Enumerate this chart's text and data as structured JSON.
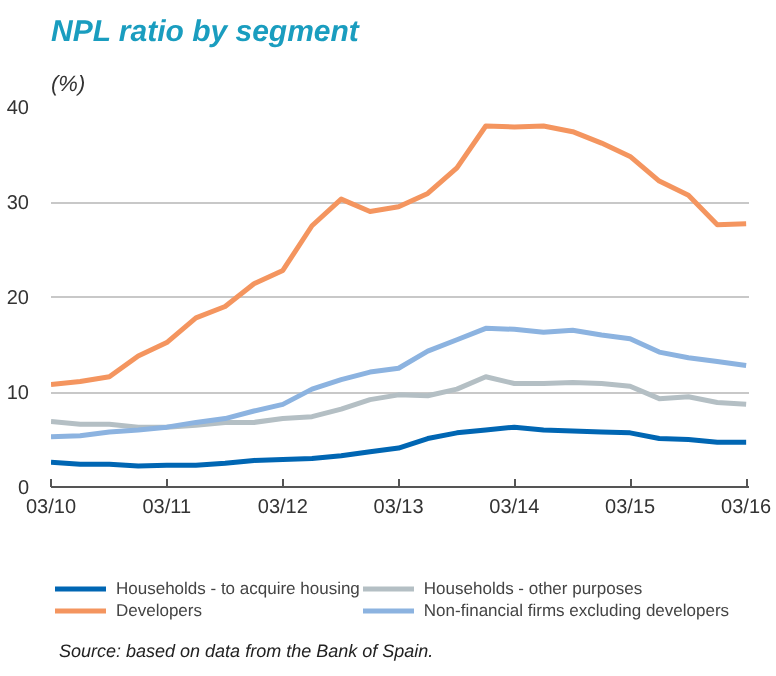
{
  "chart_data": {
    "type": "line",
    "title": "NPL ratio by segment",
    "ylabel": "(%)",
    "x": [
      "2010-03",
      "2010-06",
      "2010-09",
      "2010-12",
      "2011-03",
      "2011-06",
      "2011-09",
      "2011-12",
      "2012-03",
      "2012-06",
      "2012-09",
      "2012-12",
      "2013-03",
      "2013-06",
      "2013-09",
      "2013-12",
      "2014-03",
      "2014-06",
      "2014-09",
      "2014-12",
      "2015-03",
      "2015-06",
      "2015-09",
      "2015-12",
      "2016-03"
    ],
    "xlim": [
      "2010-03",
      "2016-03-10"
    ],
    "xticks": [
      {
        "value": "2010-03",
        "label": "03/10"
      },
      {
        "value": "2011-03",
        "label": "03/11"
      },
      {
        "value": "2012-03",
        "label": "03/12"
      },
      {
        "value": "2013-03",
        "label": "03/13"
      },
      {
        "value": "2014-03",
        "label": "03/14"
      },
      {
        "value": "2015-03",
        "label": "03/15"
      },
      {
        "value": "2016-03",
        "label": "03/16"
      }
    ],
    "ylim": [
      0,
      40
    ],
    "yticks": [
      0,
      10,
      20,
      30,
      40
    ],
    "grid": "y",
    "legend": "bottom",
    "series": [
      {
        "name": "Households - to acquire housing",
        "color": "#0066b3",
        "values": [
          2.6,
          2.4,
          2.4,
          2.2,
          2.3,
          2.3,
          2.5,
          2.8,
          2.9,
          3.0,
          3.3,
          3.7,
          4.1,
          5.1,
          5.7,
          6.0,
          6.3,
          6.0,
          5.9,
          5.8,
          5.7,
          5.1,
          5.0,
          4.7,
          4.7
        ]
      },
      {
        "name": "Developers",
        "color": "#f4955f",
        "values": [
          10.8,
          11.1,
          11.6,
          13.8,
          15.2,
          17.8,
          19.0,
          21.4,
          22.8,
          27.5,
          30.3,
          29.0,
          29.5,
          30.9,
          33.6,
          38.0,
          37.9,
          38.0,
          37.4,
          36.2,
          34.8,
          32.2,
          30.7,
          27.6,
          27.7
        ]
      },
      {
        "name": "Households - other purposes",
        "color": "#b4bfc4",
        "values": [
          6.9,
          6.6,
          6.6,
          6.3,
          6.3,
          6.5,
          6.8,
          6.8,
          7.2,
          7.4,
          8.2,
          9.2,
          9.7,
          9.6,
          10.3,
          11.6,
          10.9,
          10.9,
          11.0,
          10.9,
          10.6,
          9.3,
          9.5,
          8.9,
          8.7
        ]
      },
      {
        "name": "Non-financial firms excluding developers",
        "color": "#8cb3e0",
        "values": [
          5.3,
          5.4,
          5.8,
          6.0,
          6.3,
          6.8,
          7.2,
          8.0,
          8.7,
          10.3,
          11.3,
          12.1,
          12.5,
          14.3,
          15.5,
          16.7,
          16.6,
          16.3,
          16.5,
          16.0,
          15.6,
          14.2,
          13.6,
          13.2,
          12.8
        ]
      }
    ],
    "annotations": [
      "Source: based on data from the Bank of Spain."
    ]
  }
}
